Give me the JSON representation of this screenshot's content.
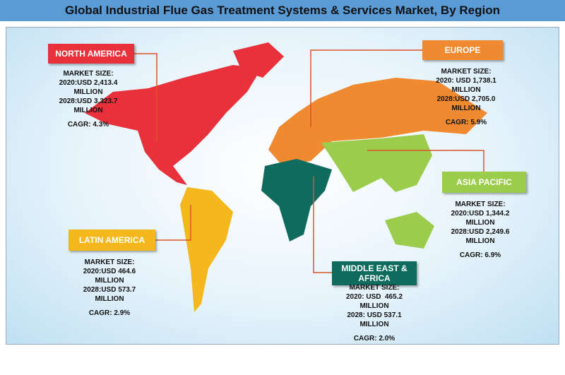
{
  "title": "Global Industrial Flue Gas Treatment Systems & Services Market, By Region",
  "regions": [
    {
      "name": "NORTH AMERICA",
      "lines": [
        "MARKET SIZE:",
        "2020:USD 2,413.4",
        "MILLION",
        "2028:USD 3,323.7",
        "MILLION",
        "CAGR: 4.3%"
      ]
    },
    {
      "name": "EUROPE",
      "lines": [
        "MARKET SIZE:",
        "2020: USD 1,738.1",
        "MILLION",
        "2028:USD 2,705.0",
        "MILLION",
        "CAGR: 5.9%"
      ]
    },
    {
      "name": "ASIA PACIFIC",
      "lines": [
        "MARKET SIZE:",
        "2020:USD 1,344.2",
        "MILLION",
        "2028:USD 2,249.6",
        "MILLION",
        "CAGR: 6.9%"
      ]
    },
    {
      "name": "LATIN AMERICA",
      "lines": [
        "MARKET SIZE:",
        "2020:USD 464.6",
        "MILLION",
        "2028:USD 573.7",
        "MILLION",
        "CAGR: 2.9%"
      ]
    },
    {
      "name": "MIDDLE EAST & AFRICA",
      "lines": [
        "MARKET SIZE:",
        "2020: USD  465.2",
        "MILLION",
        "2028: USD 537.1",
        "MILLION",
        "CAGR: 2.0%"
      ]
    }
  ]
}
